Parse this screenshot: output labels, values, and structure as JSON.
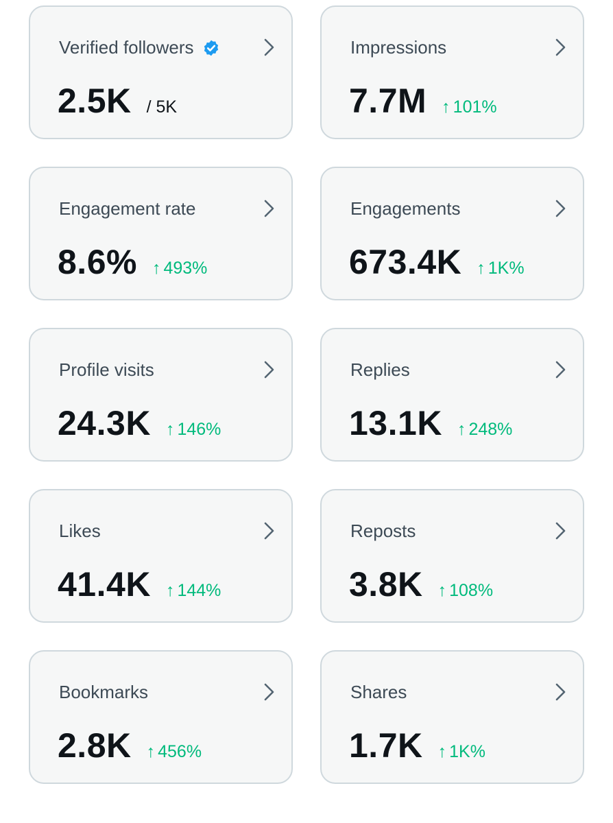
{
  "colors": {
    "card_background": "#f6f7f7",
    "card_border": "#cfd8dd",
    "label": "#3d4a55",
    "value": "#0f1419",
    "positive_change": "#00ba7c",
    "verified_badge": "#1d9bf0",
    "chevron": "#536471"
  },
  "icons": {
    "chevron": "chevron-right-icon",
    "verified": "verified-badge-icon",
    "change": "arrow-up-icon"
  },
  "cards": [
    {
      "label": "Verified followers",
      "value": "2.5K",
      "total": "/ 5K"
    },
    {
      "label": "Impressions",
      "value": "7.7M",
      "arrow": "↑",
      "change": "101%"
    },
    {
      "label": "Engagement rate",
      "value": "8.6%",
      "arrow": "↑",
      "change": "493%"
    },
    {
      "label": "Engagements",
      "value": "673.4K",
      "arrow": "↑",
      "change": "1K%"
    },
    {
      "label": "Profile visits",
      "value": "24.3K",
      "arrow": "↑",
      "change": "146%"
    },
    {
      "label": "Replies",
      "value": "13.1K",
      "arrow": "↑",
      "change": "248%"
    },
    {
      "label": "Likes",
      "value": "41.4K",
      "arrow": "↑",
      "change": "144%"
    },
    {
      "label": "Reposts",
      "value": "3.8K",
      "arrow": "↑",
      "change": "108%"
    },
    {
      "label": "Bookmarks",
      "value": "2.8K",
      "arrow": "↑",
      "change": "456%"
    },
    {
      "label": "Shares",
      "value": "1.7K",
      "arrow": "↑",
      "change": "1K%"
    }
  ]
}
